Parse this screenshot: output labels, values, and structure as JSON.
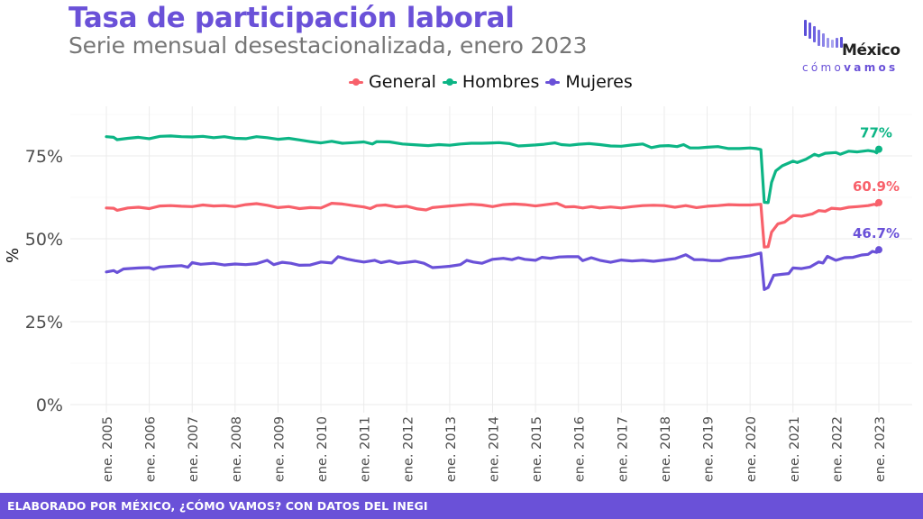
{
  "header": {
    "title": "Tasa de participación laboral",
    "subtitle": "Serie mensual desestacionalizada, enero 2023"
  },
  "logo": {
    "word": "México",
    "sub_light": "cómo",
    "sub_bold": "vamos"
  },
  "legend": [
    {
      "name": "General",
      "color": "#f8616b"
    },
    {
      "name": "Hombres",
      "color": "#0cb585"
    },
    {
      "name": "Mujeres",
      "color": "#6a51d8"
    }
  ],
  "footer": {
    "text": "ELABORADO POR MÉXICO, ¿CÓMO VAMOS? CON DATOS DEL INEGI"
  },
  "chart_data": {
    "type": "line",
    "title": "Tasa de participación laboral",
    "subtitle": "Serie mensual desestacionalizada, enero 2023",
    "xlabel": "",
    "ylabel": "%",
    "ylim": [
      0,
      90
    ],
    "xlim": [
      2005.0,
      2023.0
    ],
    "grid": true,
    "legend_position": "top",
    "y_ticks": [
      0,
      25,
      50,
      75
    ],
    "y_tick_labels": [
      "0%",
      "25%",
      "50%",
      "75%"
    ],
    "x_ticks": [
      2005,
      2006,
      2007,
      2008,
      2009,
      2010,
      2011,
      2012,
      2013,
      2014,
      2015,
      2016,
      2017,
      2018,
      2019,
      2020,
      2021,
      2022,
      2023
    ],
    "x_tick_labels": [
      "ene. 2005",
      "ene. 2006",
      "ene. 2007",
      "ene. 2008",
      "ene. 2009",
      "ene. 2010",
      "ene. 2011",
      "ene. 2012",
      "ene. 2013",
      "ene. 2014",
      "ene. 2015",
      "ene. 2016",
      "ene. 2017",
      "ene. 2018",
      "ene. 2019",
      "ene. 2020",
      "ene. 2021",
      "ene. 2022",
      "ene. 2023"
    ],
    "series": [
      {
        "name": "Hombres",
        "color": "#0cb585",
        "end_label": "77%",
        "points": [
          [
            2005.0,
            80.8
          ],
          [
            2005.17,
            80.6
          ],
          [
            2005.25,
            79.9
          ],
          [
            2005.5,
            80.3
          ],
          [
            2005.75,
            80.6
          ],
          [
            2006.0,
            80.2
          ],
          [
            2006.25,
            80.9
          ],
          [
            2006.5,
            81.0
          ],
          [
            2006.75,
            80.8
          ],
          [
            2007.0,
            80.7
          ],
          [
            2007.25,
            80.9
          ],
          [
            2007.5,
            80.5
          ],
          [
            2007.75,
            80.8
          ],
          [
            2008.0,
            80.3
          ],
          [
            2008.25,
            80.2
          ],
          [
            2008.5,
            80.8
          ],
          [
            2008.75,
            80.5
          ],
          [
            2009.0,
            80.0
          ],
          [
            2009.25,
            80.3
          ],
          [
            2009.5,
            79.8
          ],
          [
            2009.75,
            79.3
          ],
          [
            2010.0,
            78.9
          ],
          [
            2010.25,
            79.4
          ],
          [
            2010.5,
            78.8
          ],
          [
            2010.75,
            79.0
          ],
          [
            2011.0,
            79.2
          ],
          [
            2011.2,
            78.6
          ],
          [
            2011.3,
            79.3
          ],
          [
            2011.6,
            79.2
          ],
          [
            2011.9,
            78.6
          ],
          [
            2012.25,
            78.3
          ],
          [
            2012.5,
            78.1
          ],
          [
            2012.75,
            78.4
          ],
          [
            2013.0,
            78.2
          ],
          [
            2013.25,
            78.6
          ],
          [
            2013.5,
            78.8
          ],
          [
            2013.75,
            78.8
          ],
          [
            2014.0,
            78.9
          ],
          [
            2014.15,
            79.0
          ],
          [
            2014.4,
            78.7
          ],
          [
            2014.6,
            78.0
          ],
          [
            2014.75,
            78.1
          ],
          [
            2015.0,
            78.3
          ],
          [
            2015.2,
            78.5
          ],
          [
            2015.45,
            78.9
          ],
          [
            2015.6,
            78.4
          ],
          [
            2015.8,
            78.2
          ],
          [
            2016.0,
            78.5
          ],
          [
            2016.25,
            78.7
          ],
          [
            2016.5,
            78.4
          ],
          [
            2016.75,
            78.0
          ],
          [
            2017.0,
            77.9
          ],
          [
            2017.25,
            78.3
          ],
          [
            2017.5,
            78.6
          ],
          [
            2017.7,
            77.5
          ],
          [
            2017.9,
            78.0
          ],
          [
            2018.1,
            78.1
          ],
          [
            2018.3,
            77.8
          ],
          [
            2018.45,
            78.4
          ],
          [
            2018.6,
            77.4
          ],
          [
            2018.8,
            77.4
          ],
          [
            2019.0,
            77.6
          ],
          [
            2019.25,
            77.8
          ],
          [
            2019.5,
            77.2
          ],
          [
            2019.75,
            77.2
          ],
          [
            2020.0,
            77.4
          ],
          [
            2020.15,
            77.2
          ],
          [
            2020.25,
            76.9
          ],
          [
            2020.33,
            61.0
          ],
          [
            2020.42,
            60.9
          ],
          [
            2020.5,
            67.0
          ],
          [
            2020.6,
            70.5
          ],
          [
            2020.75,
            72.0
          ],
          [
            2021.0,
            73.4
          ],
          [
            2021.1,
            73.0
          ],
          [
            2021.3,
            74.0
          ],
          [
            2021.5,
            75.5
          ],
          [
            2021.6,
            75.0
          ],
          [
            2021.75,
            75.8
          ],
          [
            2022.0,
            76.0
          ],
          [
            2022.1,
            75.5
          ],
          [
            2022.3,
            76.4
          ],
          [
            2022.5,
            76.2
          ],
          [
            2022.75,
            76.6
          ],
          [
            2022.9,
            76.3
          ],
          [
            2022.95,
            75.9
          ],
          [
            2023.0,
            77.0
          ]
        ]
      },
      {
        "name": "General",
        "color": "#f8616b",
        "end_label": "60.9%",
        "points": [
          [
            2005.0,
            59.3
          ],
          [
            2005.17,
            59.2
          ],
          [
            2005.25,
            58.6
          ],
          [
            2005.5,
            59.3
          ],
          [
            2005.75,
            59.5
          ],
          [
            2006.0,
            59.1
          ],
          [
            2006.25,
            59.9
          ],
          [
            2006.5,
            60.0
          ],
          [
            2006.75,
            59.8
          ],
          [
            2007.0,
            59.7
          ],
          [
            2007.25,
            60.2
          ],
          [
            2007.5,
            59.9
          ],
          [
            2007.75,
            60.0
          ],
          [
            2008.0,
            59.7
          ],
          [
            2008.25,
            60.3
          ],
          [
            2008.5,
            60.6
          ],
          [
            2008.75,
            60.1
          ],
          [
            2009.0,
            59.4
          ],
          [
            2009.25,
            59.7
          ],
          [
            2009.5,
            59.1
          ],
          [
            2009.75,
            59.4
          ],
          [
            2010.0,
            59.3
          ],
          [
            2010.25,
            60.7
          ],
          [
            2010.5,
            60.5
          ],
          [
            2010.75,
            60.0
          ],
          [
            2011.0,
            59.6
          ],
          [
            2011.15,
            59.1
          ],
          [
            2011.3,
            60.0
          ],
          [
            2011.5,
            60.2
          ],
          [
            2011.75,
            59.6
          ],
          [
            2012.0,
            59.8
          ],
          [
            2012.25,
            59.0
          ],
          [
            2012.45,
            58.7
          ],
          [
            2012.6,
            59.4
          ],
          [
            2012.75,
            59.6
          ],
          [
            2013.0,
            59.9
          ],
          [
            2013.2,
            60.1
          ],
          [
            2013.5,
            60.4
          ],
          [
            2013.75,
            60.2
          ],
          [
            2014.0,
            59.7
          ],
          [
            2014.25,
            60.3
          ],
          [
            2014.5,
            60.5
          ],
          [
            2014.75,
            60.3
          ],
          [
            2015.0,
            59.9
          ],
          [
            2015.25,
            60.3
          ],
          [
            2015.5,
            60.7
          ],
          [
            2015.7,
            59.6
          ],
          [
            2015.9,
            59.7
          ],
          [
            2016.1,
            59.3
          ],
          [
            2016.3,
            59.7
          ],
          [
            2016.5,
            59.3
          ],
          [
            2016.75,
            59.6
          ],
          [
            2017.0,
            59.3
          ],
          [
            2017.25,
            59.7
          ],
          [
            2017.5,
            60.0
          ],
          [
            2017.75,
            60.1
          ],
          [
            2018.0,
            60.0
          ],
          [
            2018.25,
            59.5
          ],
          [
            2018.5,
            60.0
          ],
          [
            2018.75,
            59.4
          ],
          [
            2019.0,
            59.8
          ],
          [
            2019.25,
            60.0
          ],
          [
            2019.5,
            60.3
          ],
          [
            2019.75,
            60.2
          ],
          [
            2020.0,
            60.2
          ],
          [
            2020.25,
            60.4
          ],
          [
            2020.33,
            47.5
          ],
          [
            2020.42,
            47.6
          ],
          [
            2020.5,
            52.0
          ],
          [
            2020.65,
            54.5
          ],
          [
            2020.8,
            55.0
          ],
          [
            2021.0,
            57.0
          ],
          [
            2021.2,
            56.8
          ],
          [
            2021.45,
            57.5
          ],
          [
            2021.6,
            58.5
          ],
          [
            2021.75,
            58.3
          ],
          [
            2021.9,
            59.2
          ],
          [
            2022.1,
            59.0
          ],
          [
            2022.3,
            59.5
          ],
          [
            2022.5,
            59.7
          ],
          [
            2022.75,
            60.0
          ],
          [
            2022.9,
            60.4
          ],
          [
            2022.95,
            60.1
          ],
          [
            2023.0,
            60.9
          ]
        ]
      },
      {
        "name": "Mujeres",
        "color": "#6a51d8",
        "end_label": "46.7%",
        "points": [
          [
            2005.0,
            40.0
          ],
          [
            2005.17,
            40.4
          ],
          [
            2005.25,
            39.8
          ],
          [
            2005.4,
            40.9
          ],
          [
            2005.75,
            41.2
          ],
          [
            2006.0,
            41.3
          ],
          [
            2006.1,
            40.8
          ],
          [
            2006.25,
            41.5
          ],
          [
            2006.5,
            41.7
          ],
          [
            2006.75,
            41.9
          ],
          [
            2006.9,
            41.4
          ],
          [
            2007.0,
            42.8
          ],
          [
            2007.2,
            42.3
          ],
          [
            2007.5,
            42.6
          ],
          [
            2007.75,
            42.1
          ],
          [
            2008.0,
            42.4
          ],
          [
            2008.25,
            42.2
          ],
          [
            2008.5,
            42.5
          ],
          [
            2008.75,
            43.5
          ],
          [
            2008.9,
            42.2
          ],
          [
            2009.1,
            42.9
          ],
          [
            2009.3,
            42.6
          ],
          [
            2009.5,
            42.0
          ],
          [
            2009.75,
            42.1
          ],
          [
            2010.0,
            43.0
          ],
          [
            2010.25,
            42.7
          ],
          [
            2010.4,
            44.6
          ],
          [
            2010.6,
            43.9
          ],
          [
            2010.8,
            43.4
          ],
          [
            2011.0,
            43.0
          ],
          [
            2011.25,
            43.5
          ],
          [
            2011.4,
            42.8
          ],
          [
            2011.6,
            43.3
          ],
          [
            2011.8,
            42.6
          ],
          [
            2012.0,
            42.9
          ],
          [
            2012.2,
            43.2
          ],
          [
            2012.4,
            42.6
          ],
          [
            2012.6,
            41.3
          ],
          [
            2012.8,
            41.5
          ],
          [
            2013.0,
            41.7
          ],
          [
            2013.25,
            42.2
          ],
          [
            2013.4,
            43.5
          ],
          [
            2013.55,
            43.0
          ],
          [
            2013.75,
            42.6
          ],
          [
            2014.0,
            43.8
          ],
          [
            2014.25,
            44.1
          ],
          [
            2014.45,
            43.7
          ],
          [
            2014.6,
            44.3
          ],
          [
            2014.75,
            43.8
          ],
          [
            2015.0,
            43.5
          ],
          [
            2015.15,
            44.4
          ],
          [
            2015.35,
            44.1
          ],
          [
            2015.55,
            44.5
          ],
          [
            2015.75,
            44.6
          ],
          [
            2016.0,
            44.6
          ],
          [
            2016.1,
            43.4
          ],
          [
            2016.3,
            44.3
          ],
          [
            2016.5,
            43.5
          ],
          [
            2016.75,
            42.9
          ],
          [
            2017.0,
            43.6
          ],
          [
            2017.25,
            43.3
          ],
          [
            2017.5,
            43.5
          ],
          [
            2017.75,
            43.2
          ],
          [
            2018.0,
            43.6
          ],
          [
            2018.25,
            44.0
          ],
          [
            2018.5,
            45.2
          ],
          [
            2018.7,
            43.7
          ],
          [
            2018.9,
            43.7
          ],
          [
            2019.1,
            43.4
          ],
          [
            2019.3,
            43.4
          ],
          [
            2019.5,
            44.1
          ],
          [
            2019.75,
            44.4
          ],
          [
            2020.0,
            44.9
          ],
          [
            2020.15,
            45.4
          ],
          [
            2020.25,
            45.7
          ],
          [
            2020.33,
            34.7
          ],
          [
            2020.42,
            35.3
          ],
          [
            2020.55,
            39.0
          ],
          [
            2020.75,
            39.3
          ],
          [
            2020.9,
            39.5
          ],
          [
            2021.0,
            41.2
          ],
          [
            2021.2,
            41.0
          ],
          [
            2021.4,
            41.5
          ],
          [
            2021.6,
            43.0
          ],
          [
            2021.7,
            42.7
          ],
          [
            2021.8,
            44.7
          ],
          [
            2022.0,
            43.5
          ],
          [
            2022.2,
            44.3
          ],
          [
            2022.4,
            44.4
          ],
          [
            2022.6,
            45.1
          ],
          [
            2022.75,
            45.3
          ],
          [
            2022.85,
            46.2
          ],
          [
            2022.95,
            45.9
          ],
          [
            2023.0,
            46.7
          ]
        ]
      }
    ]
  }
}
